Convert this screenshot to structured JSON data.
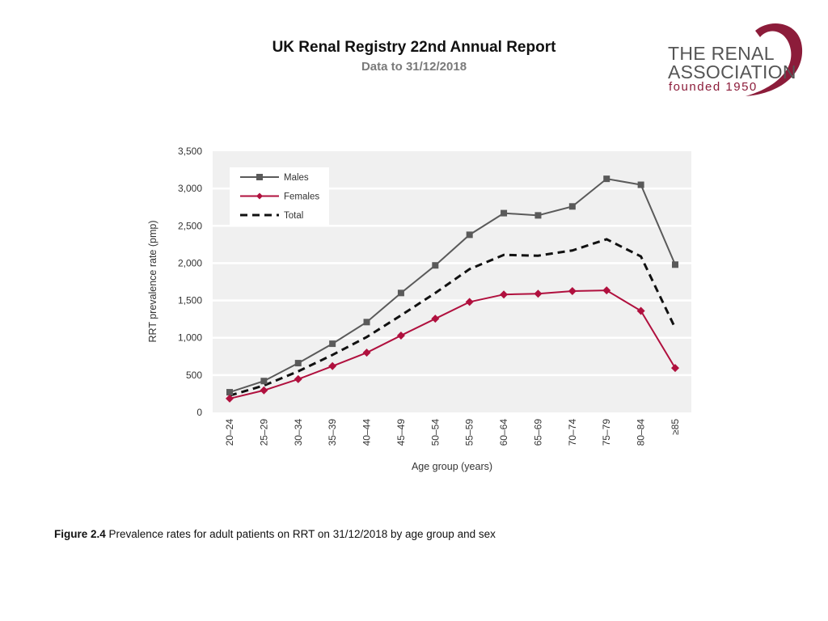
{
  "header": {
    "title": "UK Renal Registry 22nd Annual Report",
    "subtitle": "Data to 31/12/2018"
  },
  "logo": {
    "line1": "THE RENAL",
    "line2": "ASSOCIATION",
    "line3": "founded 1950",
    "accent_color": "#8c1c3a"
  },
  "caption": {
    "label": "Figure 2.4",
    "text": " Prevalence rates for adult patients on RRT on 31/12/2018 by age group and sex"
  },
  "chart_data": {
    "type": "line",
    "title": "",
    "xlabel": "Age group (years)",
    "ylabel": "RRT prevalence rate (pmp)",
    "ylim": [
      0,
      3500
    ],
    "yticks": [
      0,
      500,
      1000,
      1500,
      2000,
      2500,
      3000,
      3500
    ],
    "ytick_labels": [
      "0",
      "500",
      "1,000",
      "1,500",
      "2,000",
      "2,500",
      "3,000",
      "3,500"
    ],
    "grid": true,
    "legend_position": "top-left",
    "categories": [
      "20–24",
      "25–29",
      "30–34",
      "35–39",
      "40–44",
      "45–49",
      "50–54",
      "55–59",
      "60–64",
      "65–69",
      "70–74",
      "75–79",
      "80–84",
      "≥85"
    ],
    "series": [
      {
        "name": "Males",
        "color": "#5a5a5a",
        "marker": "square",
        "dash": "solid",
        "values": [
          270,
          420,
          660,
          920,
          1210,
          1600,
          1970,
          2380,
          2670,
          2640,
          2760,
          3130,
          3050,
          1980
        ]
      },
      {
        "name": "Females",
        "color": "#b0103e",
        "marker": "diamond",
        "dash": "solid",
        "values": [
          185,
          295,
          445,
          620,
          800,
          1030,
          1255,
          1480,
          1580,
          1590,
          1625,
          1635,
          1360,
          595
        ]
      },
      {
        "name": "Total",
        "color": "#111111",
        "marker": "none",
        "dash": "dashed",
        "values": [
          225,
          360,
          550,
          770,
          1010,
          1300,
          1600,
          1920,
          2110,
          2100,
          2170,
          2320,
          2090,
          1130
        ]
      }
    ]
  }
}
